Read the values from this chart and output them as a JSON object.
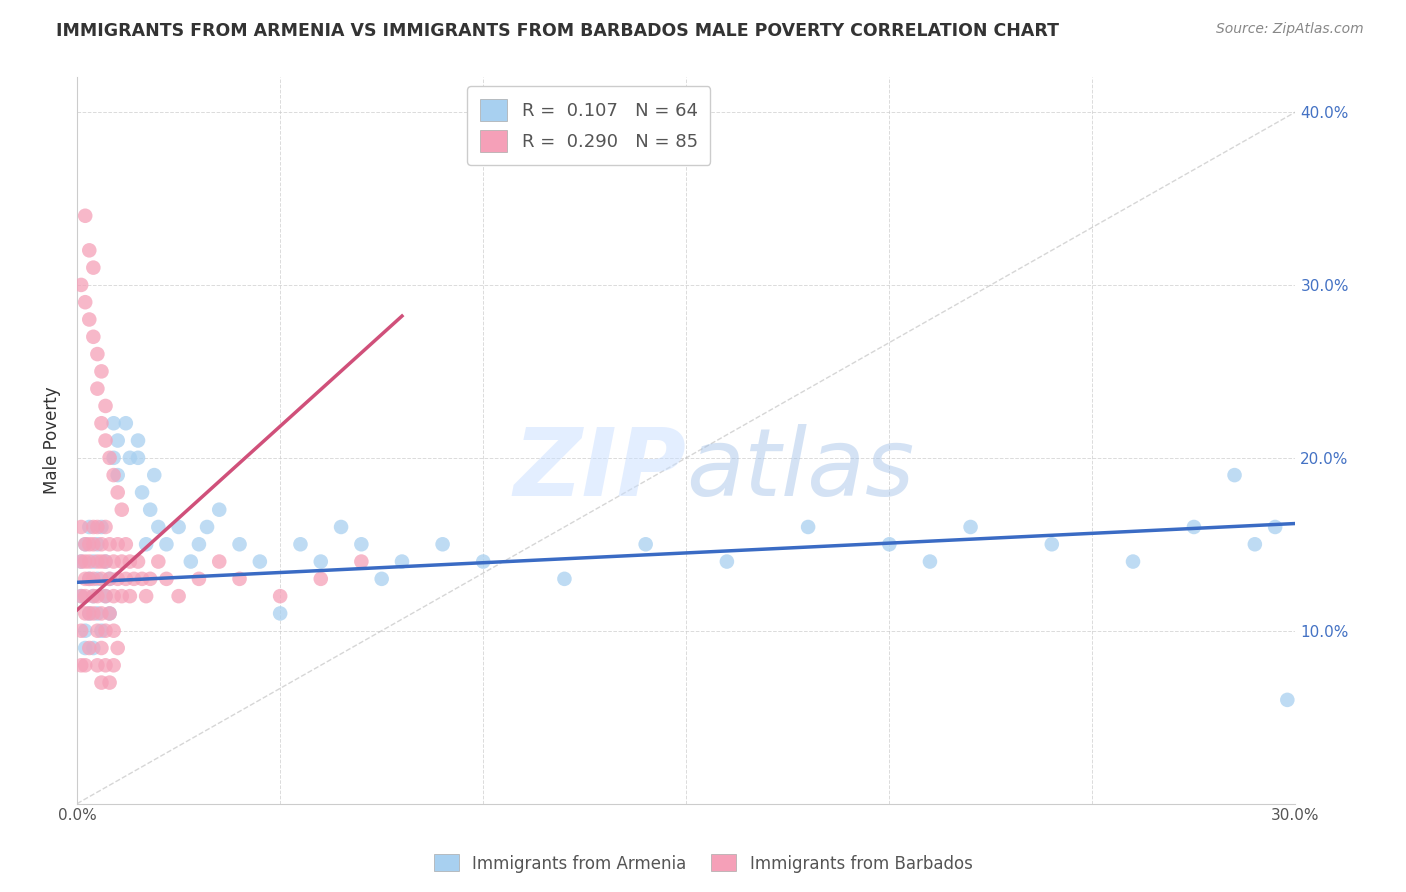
{
  "title": "IMMIGRANTS FROM ARMENIA VS IMMIGRANTS FROM BARBADOS MALE POVERTY CORRELATION CHART",
  "source": "Source: ZipAtlas.com",
  "ylabel": "Male Poverty",
  "xlim": [
    0.0,
    0.3
  ],
  "ylim": [
    0.0,
    0.42
  ],
  "armenia_color": "#A8D0F0",
  "barbados_color": "#F5A0B8",
  "armenia_line_color": "#3A6BC4",
  "barbados_line_color": "#D0507A",
  "armenia_R": 0.107,
  "armenia_N": 64,
  "barbados_R": 0.29,
  "barbados_N": 85,
  "background_color": "#FFFFFF",
  "grid_color": "#CCCCCC",
  "legend_label_armenia": "Immigrants from Armenia",
  "legend_label_barbados": "Immigrants from Barbados",
  "arm_line_x0": 0.0,
  "arm_line_y0": 0.128,
  "arm_line_x1": 0.3,
  "arm_line_y1": 0.162,
  "bar_line_x0": 0.0,
  "bar_line_y0": 0.112,
  "bar_line_x1": 0.08,
  "bar_line_y1": 0.282,
  "armenia_scatter_x": [
    0.001,
    0.001,
    0.002,
    0.002,
    0.002,
    0.003,
    0.003,
    0.003,
    0.004,
    0.004,
    0.004,
    0.005,
    0.005,
    0.005,
    0.006,
    0.006,
    0.007,
    0.007,
    0.008,
    0.008,
    0.009,
    0.009,
    0.01,
    0.01,
    0.012,
    0.013,
    0.015,
    0.015,
    0.016,
    0.017,
    0.018,
    0.019,
    0.02,
    0.022,
    0.025,
    0.028,
    0.03,
    0.032,
    0.035,
    0.04,
    0.045,
    0.05,
    0.055,
    0.06,
    0.065,
    0.07,
    0.075,
    0.08,
    0.09,
    0.1,
    0.12,
    0.14,
    0.16,
    0.18,
    0.2,
    0.21,
    0.22,
    0.24,
    0.26,
    0.275,
    0.285,
    0.29,
    0.295,
    0.298
  ],
  "armenia_scatter_y": [
    0.14,
    0.12,
    0.1,
    0.15,
    0.09,
    0.13,
    0.11,
    0.16,
    0.14,
    0.09,
    0.12,
    0.15,
    0.11,
    0.13,
    0.1,
    0.16,
    0.14,
    0.12,
    0.13,
    0.11,
    0.22,
    0.2,
    0.21,
    0.19,
    0.22,
    0.2,
    0.21,
    0.2,
    0.18,
    0.15,
    0.17,
    0.19,
    0.16,
    0.15,
    0.16,
    0.14,
    0.15,
    0.16,
    0.17,
    0.15,
    0.14,
    0.11,
    0.15,
    0.14,
    0.16,
    0.15,
    0.13,
    0.14,
    0.15,
    0.14,
    0.13,
    0.15,
    0.14,
    0.16,
    0.15,
    0.14,
    0.16,
    0.15,
    0.14,
    0.16,
    0.19,
    0.15,
    0.16,
    0.06
  ],
  "barbados_scatter_x": [
    0.001,
    0.001,
    0.001,
    0.001,
    0.001,
    0.002,
    0.002,
    0.002,
    0.002,
    0.002,
    0.002,
    0.003,
    0.003,
    0.003,
    0.003,
    0.003,
    0.004,
    0.004,
    0.004,
    0.004,
    0.004,
    0.005,
    0.005,
    0.005,
    0.005,
    0.005,
    0.006,
    0.006,
    0.006,
    0.006,
    0.006,
    0.006,
    0.007,
    0.007,
    0.007,
    0.007,
    0.007,
    0.008,
    0.008,
    0.008,
    0.008,
    0.009,
    0.009,
    0.009,
    0.009,
    0.01,
    0.01,
    0.01,
    0.011,
    0.011,
    0.012,
    0.012,
    0.013,
    0.013,
    0.014,
    0.015,
    0.016,
    0.017,
    0.018,
    0.02,
    0.022,
    0.025,
    0.03,
    0.035,
    0.04,
    0.05,
    0.06,
    0.07,
    0.001,
    0.002,
    0.002,
    0.003,
    0.003,
    0.004,
    0.004,
    0.005,
    0.005,
    0.006,
    0.006,
    0.007,
    0.007,
    0.008,
    0.009,
    0.01,
    0.011
  ],
  "barbados_scatter_y": [
    0.14,
    0.12,
    0.1,
    0.16,
    0.08,
    0.15,
    0.13,
    0.11,
    0.14,
    0.12,
    0.08,
    0.15,
    0.13,
    0.11,
    0.14,
    0.09,
    0.16,
    0.13,
    0.11,
    0.15,
    0.12,
    0.14,
    0.12,
    0.1,
    0.16,
    0.08,
    0.15,
    0.13,
    0.11,
    0.14,
    0.09,
    0.07,
    0.16,
    0.14,
    0.12,
    0.1,
    0.08,
    0.15,
    0.13,
    0.11,
    0.07,
    0.14,
    0.12,
    0.1,
    0.08,
    0.15,
    0.13,
    0.09,
    0.14,
    0.12,
    0.15,
    0.13,
    0.14,
    0.12,
    0.13,
    0.14,
    0.13,
    0.12,
    0.13,
    0.14,
    0.13,
    0.12,
    0.13,
    0.14,
    0.13,
    0.12,
    0.13,
    0.14,
    0.3,
    0.34,
    0.29,
    0.32,
    0.28,
    0.31,
    0.27,
    0.26,
    0.24,
    0.25,
    0.22,
    0.23,
    0.21,
    0.2,
    0.19,
    0.18,
    0.17
  ]
}
